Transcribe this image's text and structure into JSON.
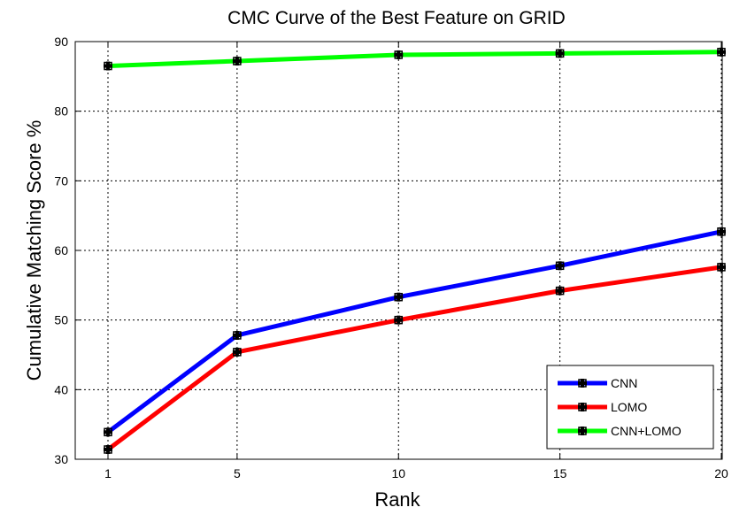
{
  "chart_data": {
    "type": "line",
    "title": "CMC Curve of the Best Feature on GRID",
    "xlabel": "Rank",
    "ylabel": "Cumulative Matching Score %",
    "x": [
      1,
      5,
      10,
      15,
      20
    ],
    "xticks": [
      1,
      5,
      10,
      15,
      20
    ],
    "yticks": [
      30,
      40,
      50,
      60,
      70,
      80,
      90
    ],
    "xlim": [
      0,
      20
    ],
    "ylim": [
      30,
      90
    ],
    "grid": true,
    "legend_position": "bottom-right",
    "series": [
      {
        "name": "CNN",
        "color": "#0000ff",
        "values": [
          33.9,
          47.8,
          53.3,
          57.8,
          62.7
        ]
      },
      {
        "name": "LOMO",
        "color": "#ff0000",
        "values": [
          31.4,
          45.4,
          50.0,
          54.2,
          57.6
        ]
      },
      {
        "name": "CNN+LOMO",
        "color": "#00ff00",
        "values": [
          86.5,
          87.2,
          88.1,
          88.3,
          88.5
        ]
      }
    ],
    "marker_color": "#000000"
  }
}
